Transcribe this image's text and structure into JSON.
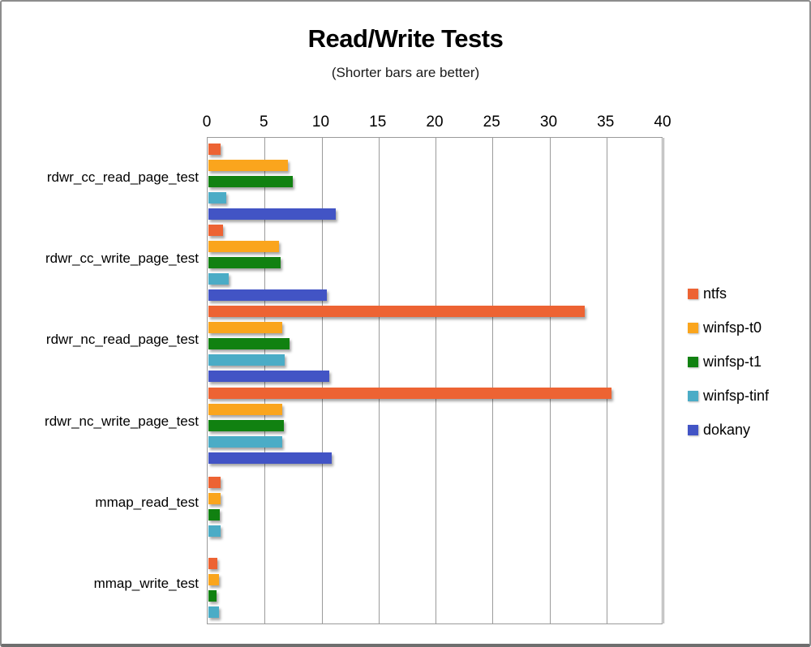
{
  "chart_data": {
    "type": "bar",
    "orientation": "horizontal",
    "title": "Read/Write Tests",
    "subtitle": "(Shorter bars are better)",
    "xlabel": "",
    "ylabel": "",
    "xlim": [
      0,
      40
    ],
    "xticks": [
      0,
      5,
      10,
      15,
      20,
      25,
      30,
      35,
      40
    ],
    "grid": true,
    "legend_position": "right",
    "axis_color": "#9b9b9b",
    "categories": [
      "rdwr_cc_read_page_test",
      "rdwr_cc_write_page_test",
      "rdwr_nc_read_page_test",
      "rdwr_nc_write_page_test",
      "mmap_read_test",
      "mmap_write_test"
    ],
    "series": [
      {
        "name": "ntfs",
        "color": "#ED6333",
        "values": [
          1.1,
          1.3,
          33.0,
          35.4,
          1.1,
          0.8
        ]
      },
      {
        "name": "winfsp-t0",
        "color": "#FAA51D",
        "values": [
          7.0,
          6.2,
          6.5,
          6.5,
          1.1,
          0.9
        ]
      },
      {
        "name": "winfsp-t1",
        "color": "#118111",
        "values": [
          7.4,
          6.3,
          7.1,
          6.6,
          1.0,
          0.7
        ]
      },
      {
        "name": "winfsp-tinf",
        "color": "#4BACC6",
        "values": [
          1.6,
          1.8,
          6.7,
          6.5,
          1.1,
          0.9
        ]
      },
      {
        "name": "dokany",
        "color": "#4254C5",
        "values": [
          11.2,
          10.4,
          10.6,
          10.8,
          null,
          null
        ]
      }
    ]
  }
}
